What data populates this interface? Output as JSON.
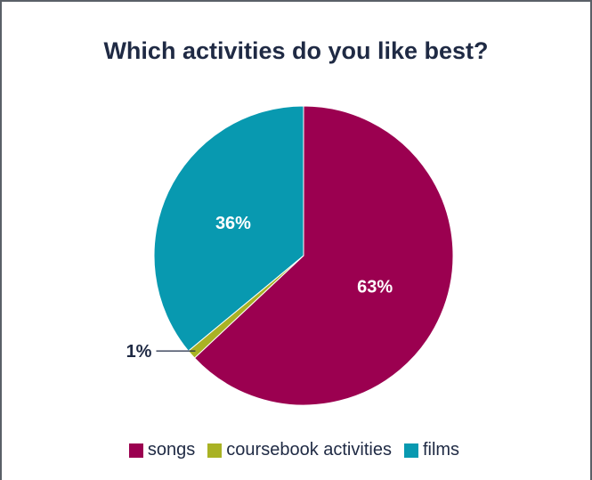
{
  "chart_data": {
    "type": "pie",
    "title": "Which activities do you like best?",
    "slices": [
      {
        "name": "songs",
        "value": 63,
        "label": "63%",
        "color": "#9b0050"
      },
      {
        "name": "coursebook activities",
        "value": 1,
        "label": "1%",
        "color": "#a9b224"
      },
      {
        "name": "films",
        "value": 36,
        "label": "36%",
        "color": "#0899b0"
      }
    ],
    "legend_position": "bottom"
  }
}
